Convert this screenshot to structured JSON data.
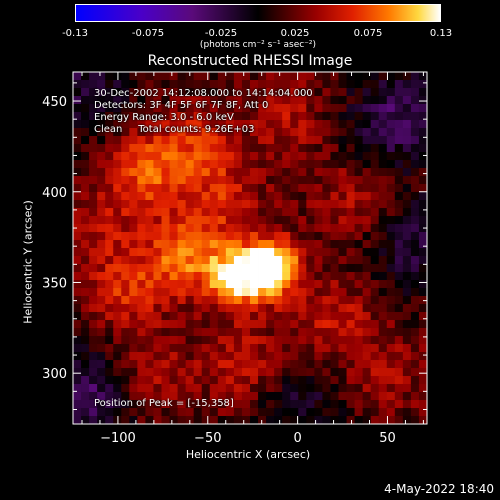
{
  "colorbar": {
    "ticks": [
      "-0.13",
      "-0.075",
      "-0.025",
      "0.025",
      "0.075",
      "0.13"
    ],
    "units": "(photons cm⁻² s⁻¹ asec⁻²)"
  },
  "info": {
    "line1": "30-Dec-2002 14:12:08.000 to 14:14:04.000",
    "line2": "Detectors: 3F 4F 5F 6F 7F 8F, Att 0",
    "line3": "Energy Range: 3.0 - 6.0 keV",
    "line4": "Clean     Total counts: 9.26E+03"
  },
  "peak_label": "Position of Peak = [-15,358]",
  "date_stamp": "4-May-2022 18:40",
  "chart_data": {
    "type": "heatmap",
    "title": "Reconstructed RHESSI Image",
    "xlabel": "Heliocentric X (arcsec)",
    "ylabel": "Heliocentric Y (arcsec)",
    "xlim": [
      -125,
      72
    ],
    "ylim": [
      272,
      466
    ],
    "xticks": [
      -100,
      -50,
      0,
      50
    ],
    "yticks": [
      300,
      350,
      400,
      450
    ],
    "colorbar_range": [
      -0.13,
      0.13
    ],
    "peak": {
      "x": -15,
      "y": 358,
      "value": 0.13
    },
    "sources": [
      {
        "x": -15,
        "y": 358,
        "value": 0.13
      },
      {
        "x": -35,
        "y": 352,
        "value": 0.09
      },
      {
        "x": -62,
        "y": 366,
        "value": 0.07
      },
      {
        "x": -85,
        "y": 412,
        "value": 0.06
      },
      {
        "x": -55,
        "y": 425,
        "value": 0.045
      },
      {
        "x": -95,
        "y": 345,
        "value": 0.045
      },
      {
        "x": -30,
        "y": 305,
        "value": 0.04
      },
      {
        "x": 20,
        "y": 330,
        "value": 0.035
      },
      {
        "x": -80,
        "y": 300,
        "value": 0.03
      },
      {
        "x": 30,
        "y": 395,
        "value": 0.03
      },
      {
        "x": -40,
        "y": 395,
        "value": 0.035
      },
      {
        "x": -110,
        "y": 380,
        "value": 0.03
      },
      {
        "x": 50,
        "y": 300,
        "value": 0.025
      },
      {
        "x": -5,
        "y": 440,
        "value": 0.03
      }
    ],
    "negative_regions": [
      {
        "x": 55,
        "y": 440,
        "value": -0.05
      },
      {
        "x": 65,
        "y": 370,
        "value": -0.035
      },
      {
        "x": -118,
        "y": 290,
        "value": -0.05
      },
      {
        "x": -118,
        "y": 455,
        "value": -0.035
      },
      {
        "x": 0,
        "y": 280,
        "value": -0.03
      }
    ]
  }
}
